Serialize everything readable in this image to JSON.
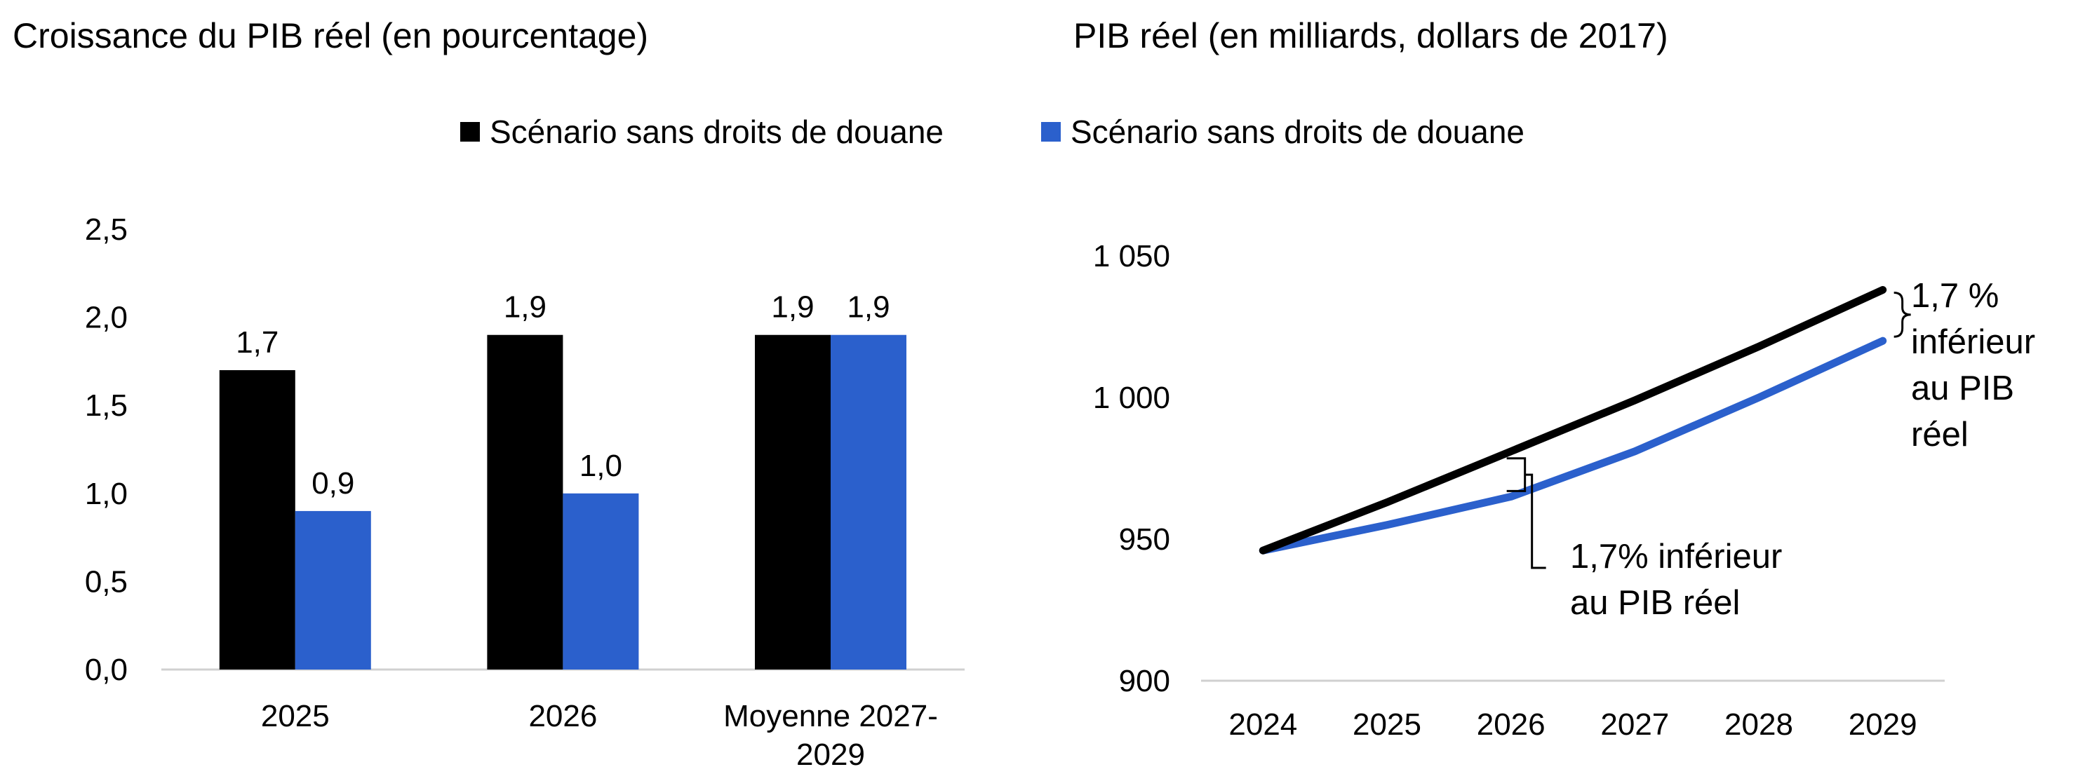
{
  "titles": {
    "left": "Croissance du PIB réel (en pourcentage)",
    "right": "PIB réel (en milliards, dollars de 2017)"
  },
  "legend": [
    {
      "label": "Scénario sans droits de douane",
      "color": "#000000"
    },
    {
      "label": "Scénario sans droits de douane",
      "color": "#2b60cc"
    }
  ],
  "chart_data": [
    {
      "type": "bar",
      "title": "Croissance du PIB réel (en pourcentage)",
      "categories": [
        "2025",
        "2026",
        "Moyenne 2027-2029"
      ],
      "category_lines": [
        [
          "2025"
        ],
        [
          "2026"
        ],
        [
          "Moyenne 2027-",
          "2029"
        ]
      ],
      "series": [
        {
          "name": "Scénario sans droits de douane",
          "color": "#000000",
          "values": [
            1.7,
            1.9,
            1.9
          ],
          "labels": [
            "1,7",
            "1,9",
            "1,9"
          ]
        },
        {
          "name": "Scénario sans droits de douane",
          "color": "#2b60cc",
          "values": [
            0.9,
            1.0,
            1.9
          ],
          "labels": [
            "0,9",
            "1,0",
            "1,9"
          ]
        }
      ],
      "ylim": [
        0,
        2.5
      ],
      "yticks": [
        0,
        0.5,
        1.0,
        1.5,
        2.0,
        2.5
      ],
      "ytick_labels": [
        "0,0",
        "0,5",
        "1,0",
        "1,5",
        "2,0",
        "2,5"
      ],
      "grid": false
    },
    {
      "type": "line",
      "title": "PIB réel (en milliards, dollars de 2017)",
      "x": [
        "2024",
        "2025",
        "2026",
        "2027",
        "2028",
        "2029"
      ],
      "series": [
        {
          "name": "Scénario sans droits de douane",
          "color": "#000000",
          "values": [
            946,
            963,
            981,
            999,
            1018,
            1038
          ]
        },
        {
          "name": "Scénario sans droits de douane",
          "color": "#2b60cc",
          "values": [
            946,
            955,
            965,
            981,
            1000,
            1020
          ]
        }
      ],
      "ylim": [
        900,
        1050
      ],
      "yticks": [
        900,
        950,
        1000,
        1050
      ],
      "ytick_labels": [
        "900",
        "950",
        "1 000",
        "1 050"
      ],
      "annotations": [
        {
          "x": "2026",
          "lines": [
            "1,7% inférieur",
            "au PIB réel"
          ]
        },
        {
          "x": "2029",
          "lines": [
            "1,7 %",
            "inférieur",
            "au PIB",
            "réel"
          ]
        }
      ],
      "grid": false
    }
  ]
}
